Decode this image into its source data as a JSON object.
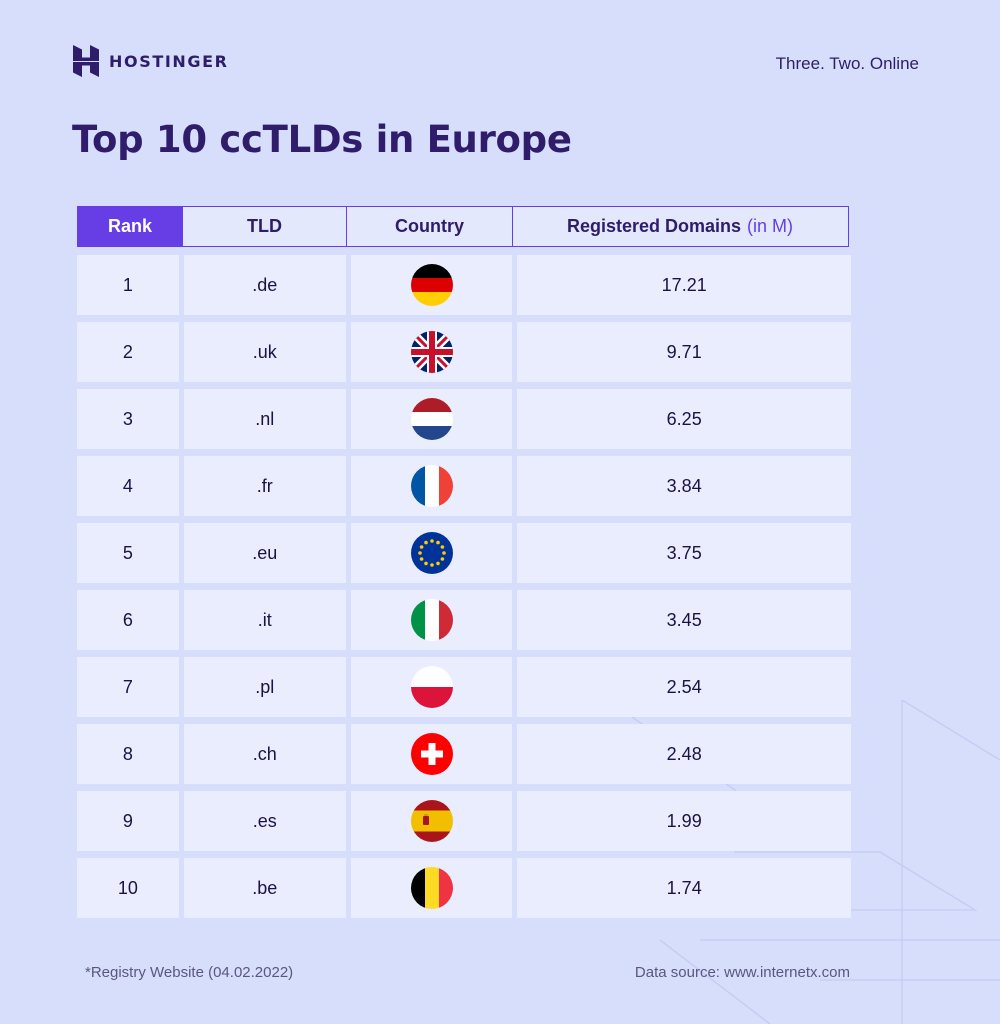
{
  "brand": {
    "name": "HOSTINGER",
    "tagline": "Three. Two. Online"
  },
  "title": "Top 10 ccTLDs in Europe",
  "table": {
    "headers": {
      "rank": "Rank",
      "tld": "TLD",
      "country": "Country",
      "registered": "Registered Domains",
      "unit": "(in M)"
    },
    "rows": [
      {
        "rank": "1",
        "tld": ".de",
        "flag": "germany-flag-icon",
        "value": "17.21"
      },
      {
        "rank": "2",
        "tld": ".uk",
        "flag": "uk-flag-icon",
        "value": "9.71"
      },
      {
        "rank": "3",
        "tld": ".nl",
        "flag": "netherlands-flag-icon",
        "value": "6.25"
      },
      {
        "rank": "4",
        "tld": ".fr",
        "flag": "france-flag-icon",
        "value": "3.84"
      },
      {
        "rank": "5",
        "tld": ".eu",
        "flag": "eu-flag-icon",
        "value": "3.75"
      },
      {
        "rank": "6",
        "tld": ".it",
        "flag": "italy-flag-icon",
        "value": "3.45"
      },
      {
        "rank": "7",
        "tld": ".pl",
        "flag": "poland-flag-icon",
        "value": "2.54"
      },
      {
        "rank": "8",
        "tld": ".ch",
        "flag": "switzerland-flag-icon",
        "value": "2.48"
      },
      {
        "rank": "9",
        "tld": ".es",
        "flag": "spain-flag-icon",
        "value": "1.99"
      },
      {
        "rank": "10",
        "tld": ".be",
        "flag": "belgium-flag-icon",
        "value": "1.74"
      }
    ]
  },
  "footer": {
    "note": "*Registry Website (04.02.2022)",
    "source": "Data source: www.internetx.com"
  },
  "colors": {
    "background": "#d6defb",
    "accent": "#673de6",
    "text": "#2f1c6a",
    "cell": "#e9edfd"
  }
}
